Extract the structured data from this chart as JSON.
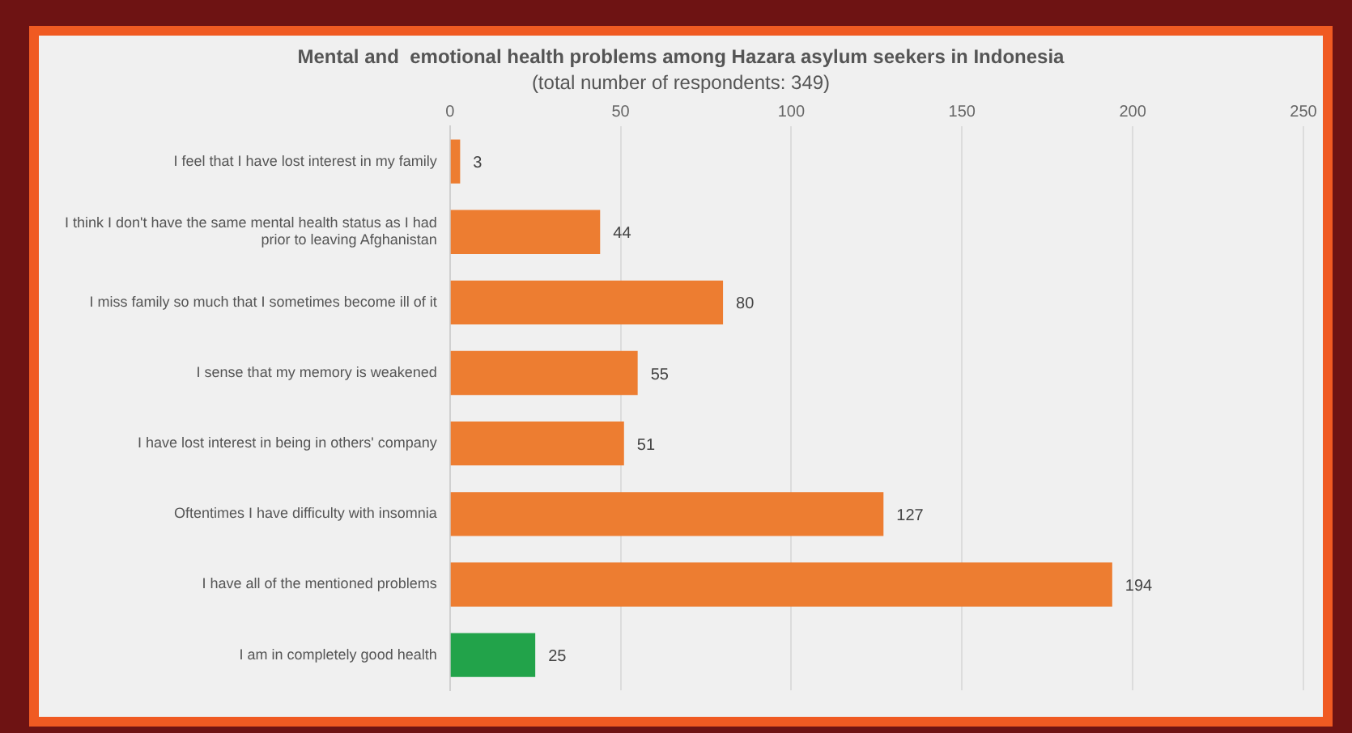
{
  "chart_data": {
    "type": "bar",
    "orientation": "horizontal",
    "title": "Mental and  emotional health problems among Hazara asylum seekers in Indonesia",
    "subtitle": "(total number of respondents: 349)",
    "categories": [
      "I feel that I have lost interest in my family",
      "I think I don't have the same mental health status as I had prior to leaving Afghanistan",
      "I miss family so much that I sometimes become ill of it",
      "I sense that my memory is weakened",
      "I have lost interest in being in others' company",
      "Oftentimes I have difficulty with insomnia",
      "I have all of the mentioned problems",
      "I am in completely good health"
    ],
    "values": [
      3,
      44,
      80,
      55,
      51,
      127,
      194,
      25
    ],
    "colors": [
      "#ed7d31",
      "#ed7d31",
      "#ed7d31",
      "#ed7d31",
      "#ed7d31",
      "#ed7d31",
      "#ed7d31",
      "#22a34a"
    ],
    "xlim": [
      0,
      250
    ],
    "xticks": [
      0,
      50,
      100,
      150,
      200,
      250
    ],
    "grid": "x",
    "data_labels": true,
    "legend": false
  }
}
